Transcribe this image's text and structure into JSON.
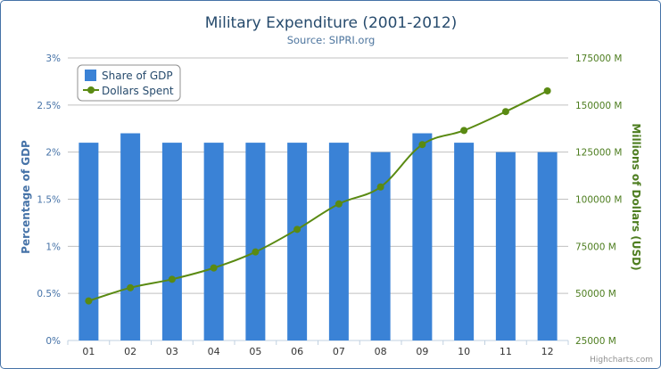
{
  "chart_data": {
    "type": "bar",
    "title": "Military Expenditure (2001-2012)",
    "subtitle": "Source: SIPRI.org",
    "categories": [
      "01",
      "02",
      "03",
      "04",
      "05",
      "06",
      "07",
      "08",
      "09",
      "10",
      "11",
      "12"
    ],
    "series": [
      {
        "name": "Share of GDP",
        "type": "bar",
        "axis": "left",
        "color": "#3a82d6",
        "values": [
          2.1,
          2.2,
          2.1,
          2.1,
          2.1,
          2.1,
          2.1,
          2.0,
          2.2,
          2.1,
          2.0,
          2.0
        ]
      },
      {
        "name": "Dollars Spent",
        "type": "line",
        "axis": "right",
        "color": "#5a8a12",
        "values": [
          46000,
          53000,
          57500,
          63500,
          72000,
          84000,
          97500,
          106500,
          129000,
          136500,
          146500,
          157500
        ]
      }
    ],
    "y_left": {
      "label": "Percentage of GDP",
      "ylim": [
        0,
        3
      ],
      "ticks": [
        0,
        0.5,
        1,
        1.5,
        2,
        2.5,
        3
      ],
      "tick_labels": [
        "0%",
        "0.5%",
        "1%",
        "1.5%",
        "2%",
        "2.5%",
        "3%"
      ]
    },
    "y_right": {
      "label": "Millions of Dollars (USD)",
      "ylim": [
        25000,
        175000
      ],
      "ticks": [
        25000,
        50000,
        75000,
        100000,
        125000,
        150000,
        175000
      ],
      "tick_labels": [
        "25000 M",
        "50000 M",
        "75000 M",
        "100000 M",
        "125000 M",
        "150000 M",
        "175000 M"
      ]
    },
    "grid": true,
    "legend": "top-left",
    "credit": "Highcharts.com"
  }
}
